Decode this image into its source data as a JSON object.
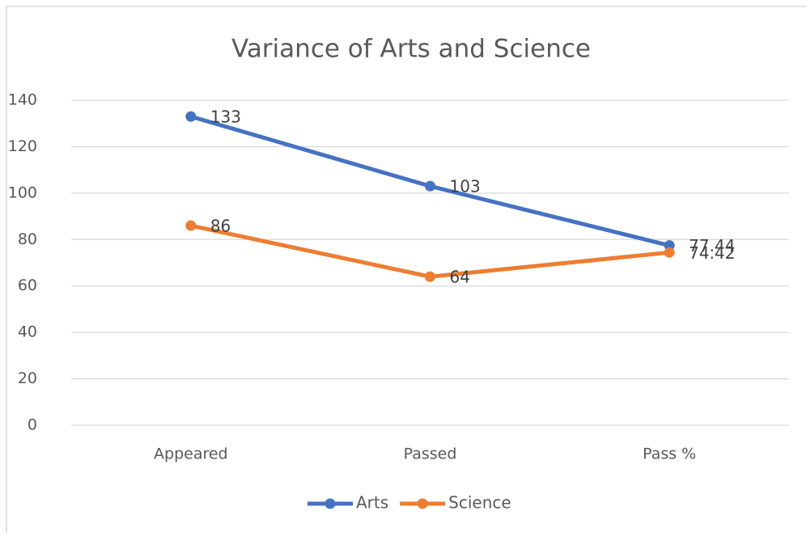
{
  "chart_data": {
    "type": "line",
    "title": "Variance of Arts and Science",
    "categories": [
      "Appeared",
      "Passed",
      "Pass %"
    ],
    "series": [
      {
        "name": "Arts",
        "color": "#4472c4",
        "values": [
          133,
          103,
          77.44
        ]
      },
      {
        "name": "Science",
        "color": "#ed7d31",
        "values": [
          86,
          64,
          74.42
        ]
      }
    ],
    "ylim": [
      0,
      140
    ],
    "yticks": [
      0,
      20,
      40,
      60,
      80,
      100,
      120,
      140
    ],
    "grid": true,
    "legend": "bottom",
    "data_labels": true
  }
}
